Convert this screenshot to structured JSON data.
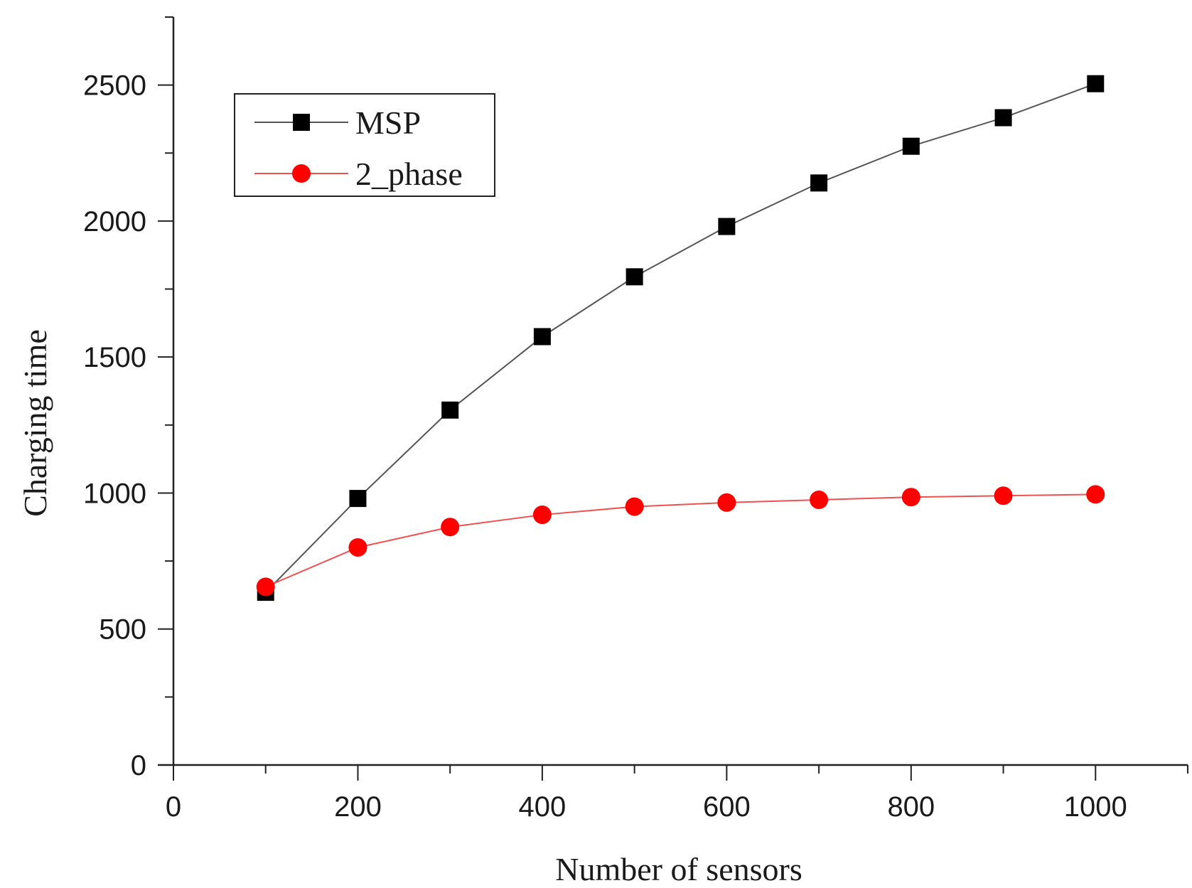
{
  "chart_data": {
    "type": "line",
    "title": "",
    "xlabel": "Number of sensors",
    "ylabel": "Charging time",
    "xlim": [
      0,
      1100
    ],
    "ylim": [
      0,
      2750
    ],
    "xticks": [
      0,
      200,
      400,
      600,
      800,
      1000
    ],
    "yticks": [
      0,
      500,
      1000,
      1500,
      2000,
      2500
    ],
    "xminor_step": 100,
    "yminor_step": 250,
    "grid": false,
    "legend_position": "top-left",
    "x": [
      100,
      200,
      300,
      400,
      500,
      600,
      700,
      800,
      900,
      1000
    ],
    "series": [
      {
        "name": "MSP",
        "marker": "square",
        "line_color": "#555555",
        "marker_color": "#000000",
        "values": [
          635,
          980,
          1305,
          1575,
          1795,
          1980,
          2140,
          2275,
          2380,
          2505
        ]
      },
      {
        "name": "2_phase",
        "marker": "circle",
        "line_color": "#f05050",
        "marker_color": "#ff0000",
        "values": [
          655,
          800,
          875,
          920,
          950,
          965,
          975,
          985,
          990,
          995
        ]
      }
    ]
  }
}
